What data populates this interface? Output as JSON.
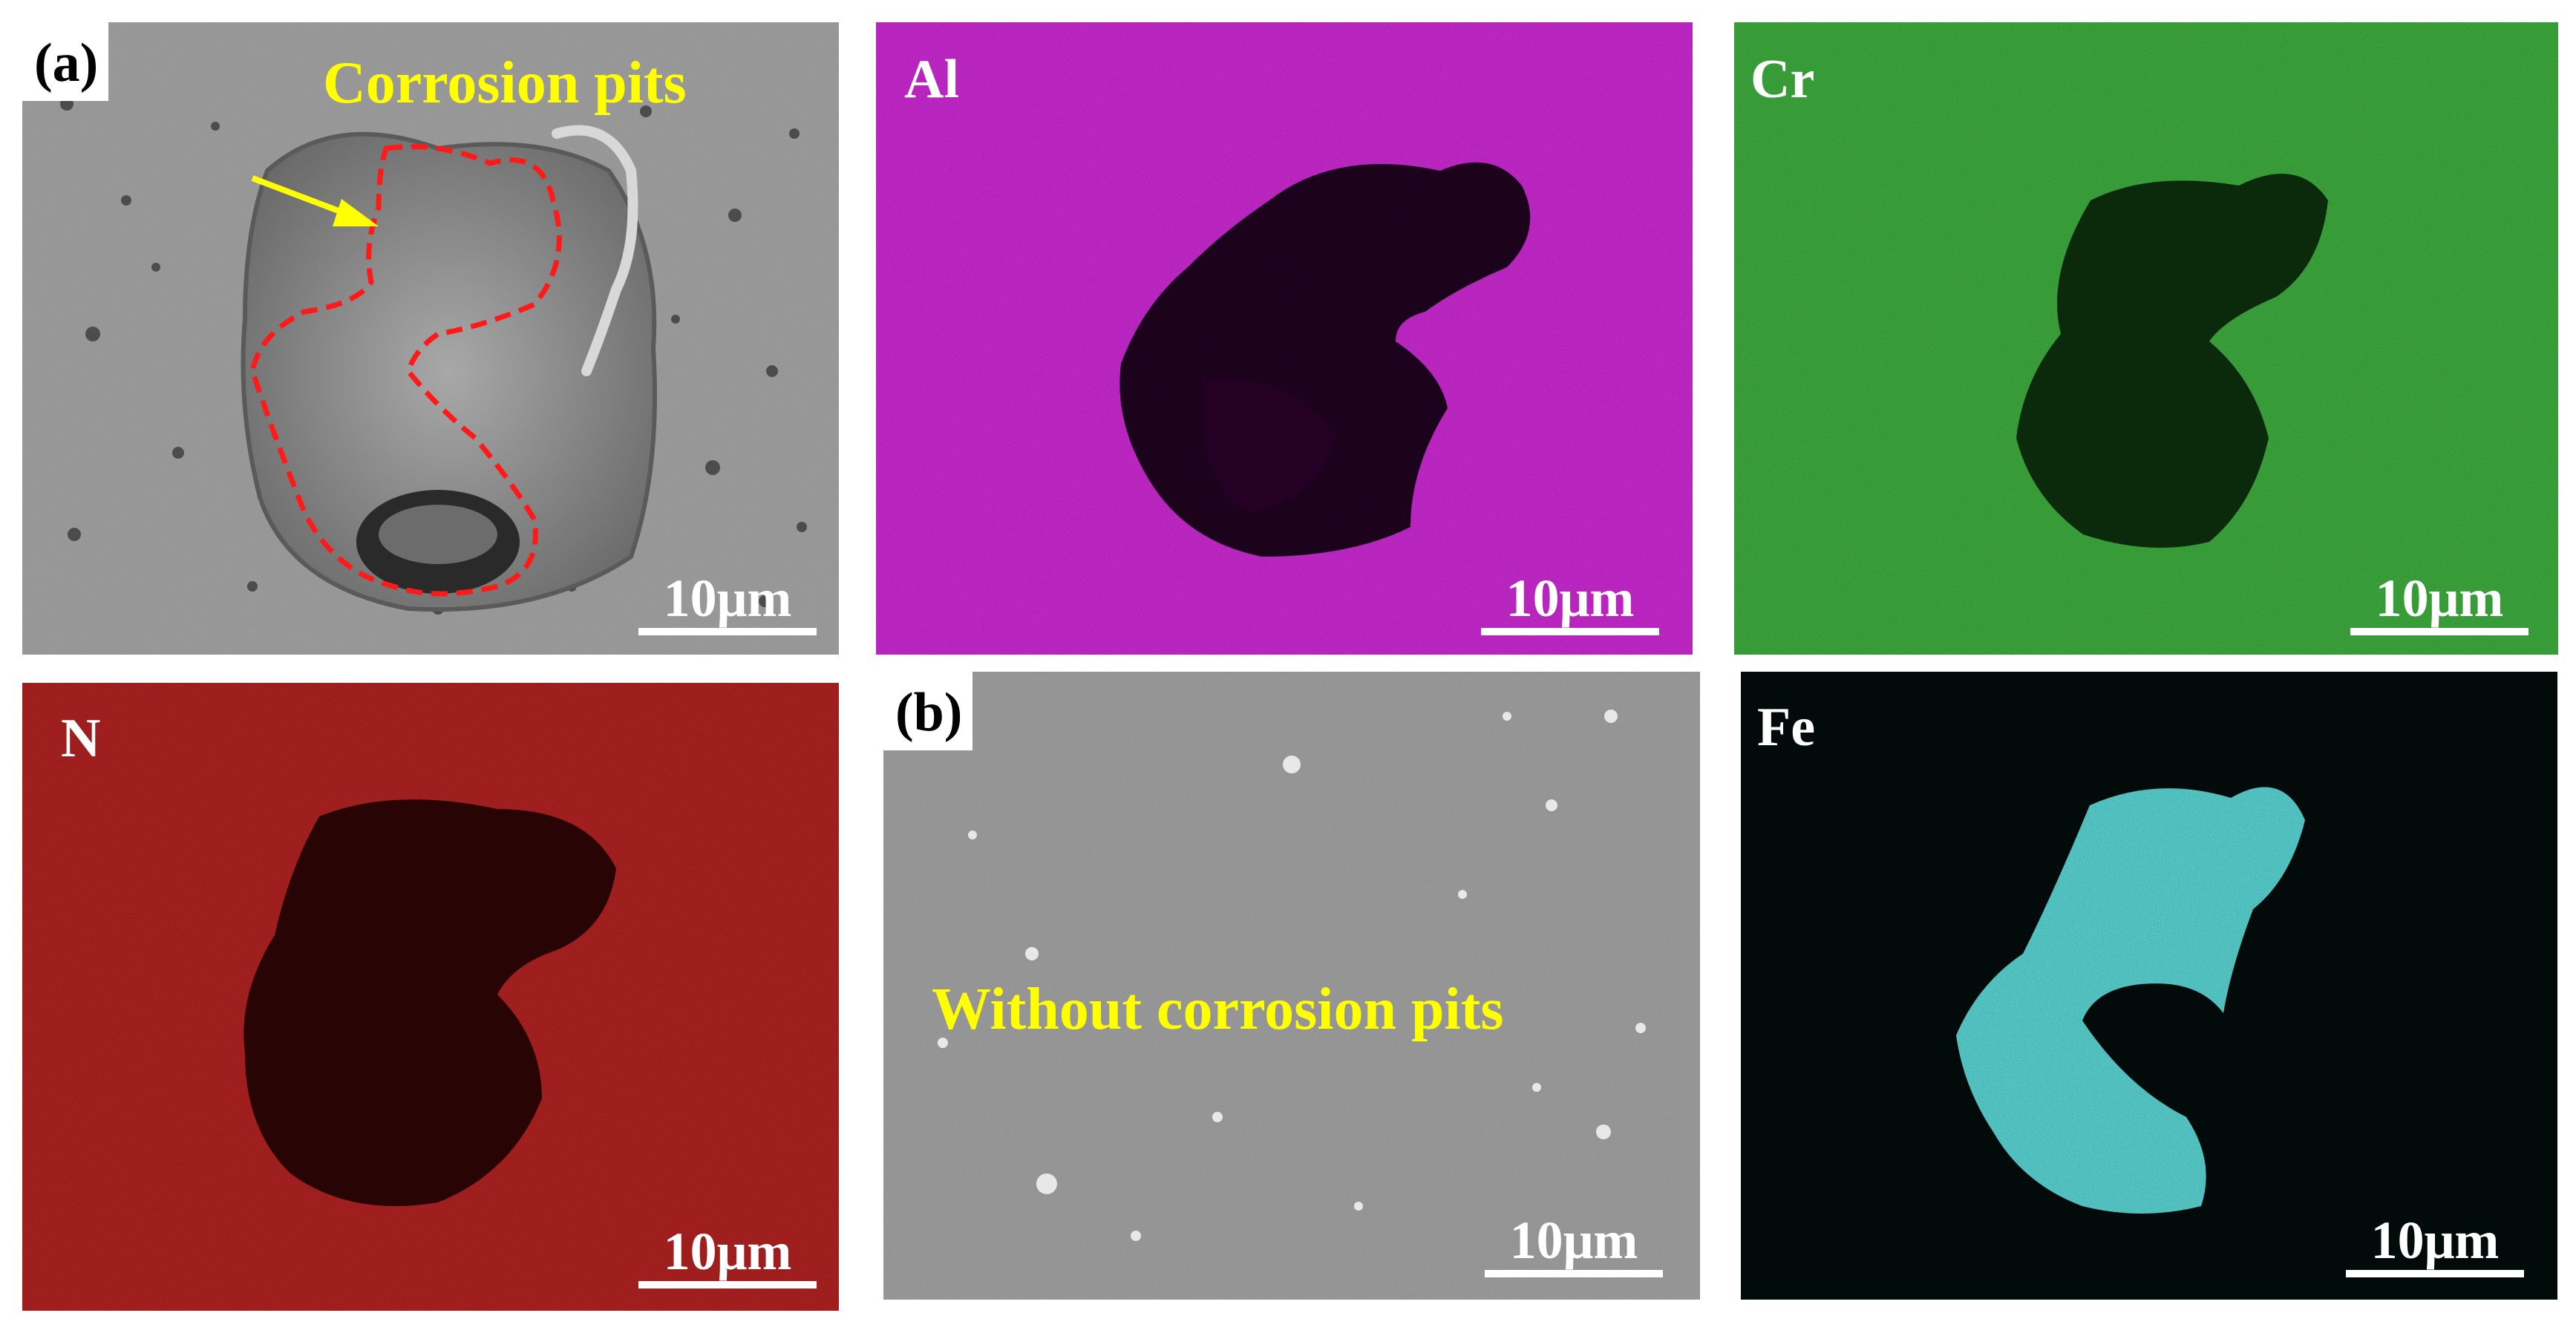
{
  "figure": {
    "panel_a": {
      "letter": "(a)",
      "caption": "Corrosion pits",
      "scalebar": "10μm"
    },
    "panel_al": {
      "element": "Al",
      "scalebar": "10μm",
      "color": "#c000c0"
    },
    "panel_cr": {
      "element": "Cr",
      "scalebar": "10μm",
      "color": "#2aa82a"
    },
    "panel_n": {
      "element": "N",
      "scalebar": "10μm",
      "color": "#c01010"
    },
    "panel_b": {
      "letter": "(b)",
      "caption": "Without corrosion pits",
      "scalebar": "10μm"
    },
    "panel_fe": {
      "element": "Fe",
      "scalebar": "10μm",
      "color": "#3ecccc"
    },
    "annotation_colors": {
      "outline": "#ff1a1a",
      "arrow": "#ffff00",
      "caption": "#ffff00"
    }
  }
}
